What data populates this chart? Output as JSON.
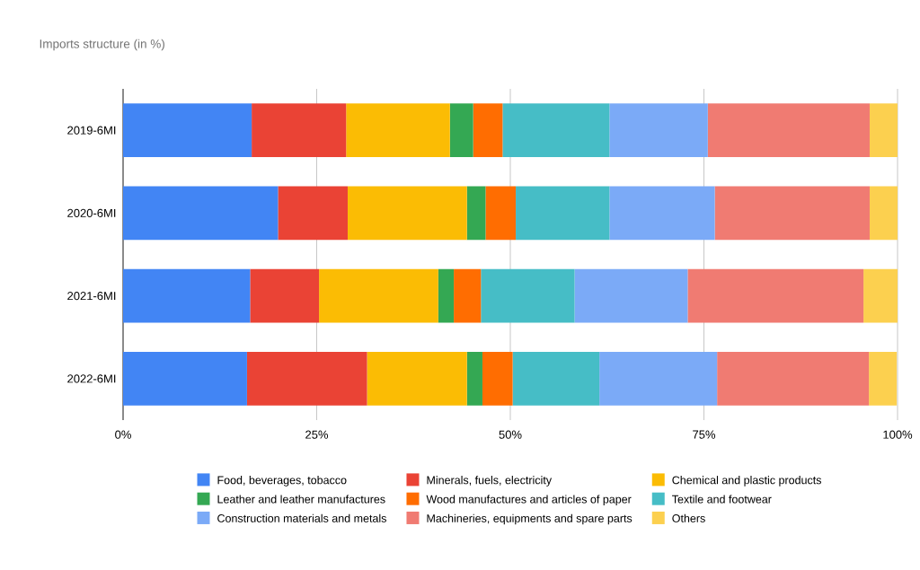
{
  "chart_data": {
    "type": "bar",
    "orientation": "horizontal",
    "stacked": true,
    "title": "Imports structure (in %)",
    "categories": [
      "2019-6MI",
      "2020-6MI",
      "2021-6MI",
      "2022-6MI"
    ],
    "series": [
      {
        "name": "Food, beverages, tobacco",
        "color": "#4285f4",
        "values": [
          16.6,
          20.0,
          16.4,
          16.0
        ]
      },
      {
        "name": "Minerals, fuels, electricity",
        "color": "#ea4335",
        "values": [
          12.2,
          9.0,
          8.9,
          15.5
        ]
      },
      {
        "name": "Chemical and plastic products",
        "color": "#fbbc04",
        "values": [
          13.4,
          15.4,
          15.4,
          12.9
        ]
      },
      {
        "name": "Leather and leather manufactures",
        "color": "#34a853",
        "values": [
          3.0,
          2.4,
          2.0,
          2.0
        ]
      },
      {
        "name": "Wood manufactures and articles of paper",
        "color": "#ff6d01",
        "values": [
          3.8,
          3.9,
          3.5,
          3.9
        ]
      },
      {
        "name": "Textile and footwear",
        "color": "#46bdc6",
        "values": [
          13.8,
          12.1,
          12.1,
          11.2
        ]
      },
      {
        "name": "Construction materials and metals",
        "color": "#7baaf7",
        "values": [
          12.7,
          13.6,
          14.6,
          15.2
        ]
      },
      {
        "name": "Machineries, equipments and spare parts",
        "color": "#f07b72",
        "values": [
          20.9,
          20.0,
          22.7,
          19.6
        ]
      },
      {
        "name": "Others",
        "color": "#fcd04f",
        "values": [
          3.6,
          3.6,
          4.4,
          3.6
        ]
      }
    ],
    "xlim": [
      0,
      100
    ],
    "xticks": [
      {
        "value": 0,
        "label": "0%"
      },
      {
        "value": 25,
        "label": "25%"
      },
      {
        "value": 50,
        "label": "50%"
      },
      {
        "value": 75,
        "label": "75%"
      },
      {
        "value": 100,
        "label": "100%"
      }
    ],
    "grid": "x",
    "legend": "bottom"
  }
}
